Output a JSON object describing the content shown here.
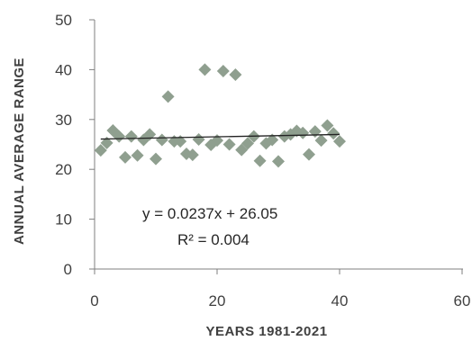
{
  "chart_data": {
    "type": "scatter",
    "title": "",
    "xlabel": "YEARS 1981-2021",
    "ylabel": "ANNUAL AVERAGE RANGE",
    "xlim": [
      0,
      60
    ],
    "ylim": [
      0,
      50
    ],
    "xticks": [
      0,
      20,
      40,
      60
    ],
    "yticks": [
      0,
      10,
      20,
      30,
      40,
      50
    ],
    "grid": false,
    "marker": "diamond",
    "marker_color": "#8f9f8f",
    "trendline_color": "#222222",
    "points": [
      [
        1,
        23.8
      ],
      [
        2,
        25.3
      ],
      [
        3,
        27.8
      ],
      [
        4,
        26.6
      ],
      [
        5,
        22.4
      ],
      [
        6,
        26.6
      ],
      [
        7,
        22.8
      ],
      [
        8,
        25.9
      ],
      [
        9,
        27.0
      ],
      [
        10,
        22.1
      ],
      [
        11,
        25.9
      ],
      [
        12,
        34.6
      ],
      [
        13,
        25.6
      ],
      [
        14,
        25.6
      ],
      [
        15,
        23.1
      ],
      [
        16,
        22.9
      ],
      [
        17,
        26.0
      ],
      [
        18,
        40.0
      ],
      [
        19,
        24.9
      ],
      [
        20,
        25.8
      ],
      [
        21,
        39.7
      ],
      [
        22,
        25.0
      ],
      [
        23,
        39.0
      ],
      [
        24,
        23.9
      ],
      [
        25,
        25.2
      ],
      [
        26,
        26.6
      ],
      [
        27,
        21.7
      ],
      [
        28,
        25.2
      ],
      [
        29,
        25.9
      ],
      [
        30,
        21.6
      ],
      [
        31,
        26.6
      ],
      [
        32,
        27.0
      ],
      [
        33,
        27.7
      ],
      [
        34,
        27.3
      ],
      [
        35,
        23.0
      ],
      [
        36,
        27.6
      ],
      [
        37,
        25.8
      ],
      [
        38,
        28.8
      ],
      [
        39,
        27.2
      ],
      [
        40,
        25.6
      ]
    ],
    "trendline": {
      "x": [
        1,
        40
      ],
      "slope": 0.0237,
      "intercept": 26.05
    },
    "annotations": {
      "equation": "y = 0.0237x + 26.05",
      "r_squared": "R² = 0.004"
    }
  }
}
